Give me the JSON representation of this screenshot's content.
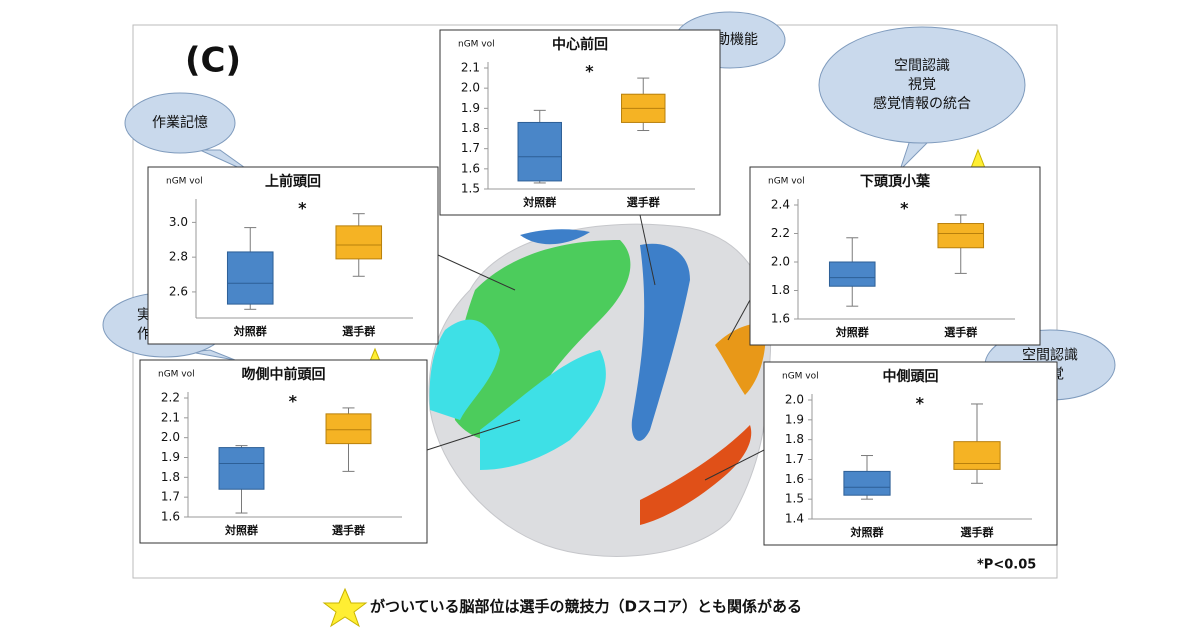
{
  "panel_label": "(C)",
  "chart_data": [
    {
      "type": "box",
      "title": "上前頭回",
      "ylabel": "nGM vol",
      "categories": [
        "対照群",
        "選手群"
      ],
      "colors": [
        "#4a86c8",
        "#f5b324"
      ],
      "annotation": "*",
      "values": [
        {
          "low": 2.5,
          "q1": 2.53,
          "median": 2.65,
          "q3": 2.83,
          "high": 2.97
        },
        {
          "low": 2.69,
          "q1": 2.79,
          "median": 2.87,
          "q3": 2.98,
          "high": 3.05
        }
      ],
      "ylim": [
        2.45,
        3.1
      ],
      "yticks": [
        2.6,
        2.8,
        {
          "value": 3,
          "label": "3.0"
        }
      ]
    },
    {
      "type": "box",
      "title": "中心前回",
      "ylabel": "nGM vol",
      "categories": [
        "対照群",
        "選手群"
      ],
      "colors": [
        "#4a86c8",
        "#f5b324"
      ],
      "annotation": "*",
      "values": [
        {
          "low": 1.53,
          "q1": 1.54,
          "median": 1.66,
          "q3": 1.83,
          "high": 1.89
        },
        {
          "low": 1.79,
          "q1": 1.83,
          "median": 1.9,
          "q3": 1.97,
          "high": 2.05
        }
      ],
      "ylim": [
        1.5,
        2.1
      ],
      "yticks": [
        1.5,
        1.6,
        1.7,
        1.8,
        1.9,
        {
          "value": 2,
          "label": "2.0"
        },
        2.1
      ]
    },
    {
      "type": "box",
      "title": "下頭頂小葉",
      "ylabel": "nGM vol",
      "categories": [
        "対照群",
        "選手群"
      ],
      "colors": [
        "#4a86c8",
        "#f5b324"
      ],
      "annotation": "*",
      "values": [
        {
          "low": 1.69,
          "q1": 1.83,
          "median": 1.89,
          "q3": 2.0,
          "high": 2.17
        },
        {
          "low": 1.92,
          "q1": 2.1,
          "median": 2.2,
          "q3": 2.27,
          "high": 2.33
        }
      ],
      "ylim": [
        1.6,
        2.4
      ],
      "yticks": [
        1.6,
        1.8,
        {
          "value": 2,
          "label": "2.0"
        },
        2.2,
        2.4
      ]
    },
    {
      "type": "box",
      "title": "吻側中前頭回",
      "ylabel": "nGM vol",
      "categories": [
        "対照群",
        "選手群"
      ],
      "colors": [
        "#4a86c8",
        "#f5b324"
      ],
      "annotation": "*",
      "values": [
        {
          "low": 1.62,
          "q1": 1.74,
          "median": 1.87,
          "q3": 1.95,
          "high": 1.96
        },
        {
          "low": 1.83,
          "q1": 1.97,
          "median": 2.04,
          "q3": 2.12,
          "high": 2.15
        }
      ],
      "ylim": [
        1.6,
        2.2
      ],
      "yticks": [
        1.6,
        1.7,
        1.8,
        1.9,
        {
          "value": 2,
          "label": "2.0"
        },
        2.1,
        2.2
      ]
    },
    {
      "type": "box",
      "title": "中側頭回",
      "ylabel": "nGM vol",
      "categories": [
        "対照群",
        "選手群"
      ],
      "colors": [
        "#4a86c8",
        "#f5b324"
      ],
      "annotation": "*",
      "values": [
        {
          "low": 1.5,
          "q1": 1.52,
          "median": 1.56,
          "q3": 1.64,
          "high": 1.72
        },
        {
          "low": 1.58,
          "q1": 1.65,
          "median": 1.68,
          "q3": 1.79,
          "high": 1.98
        }
      ],
      "ylim": [
        1.4,
        2.0
      ],
      "yticks": [
        1.4,
        1.5,
        1.6,
        1.7,
        1.8,
        1.9,
        {
          "value": 2,
          "label": "2.0"
        }
      ]
    }
  ],
  "callouts": [
    {
      "lines": [
        "作業記憶"
      ]
    },
    {
      "lines": [
        "運動機能"
      ]
    },
    {
      "lines": [
        "空間認識",
        "視覚",
        "感覚情報の統合"
      ]
    },
    {
      "lines": [
        "実行機能",
        "作業記憶"
      ]
    },
    {
      "lines": [
        "空間認識",
        "視覚"
      ]
    }
  ],
  "significance_note": "*P<0.05",
  "footer": "がついている脳部位は選手の競技力（Dスコア）とも関係がある"
}
